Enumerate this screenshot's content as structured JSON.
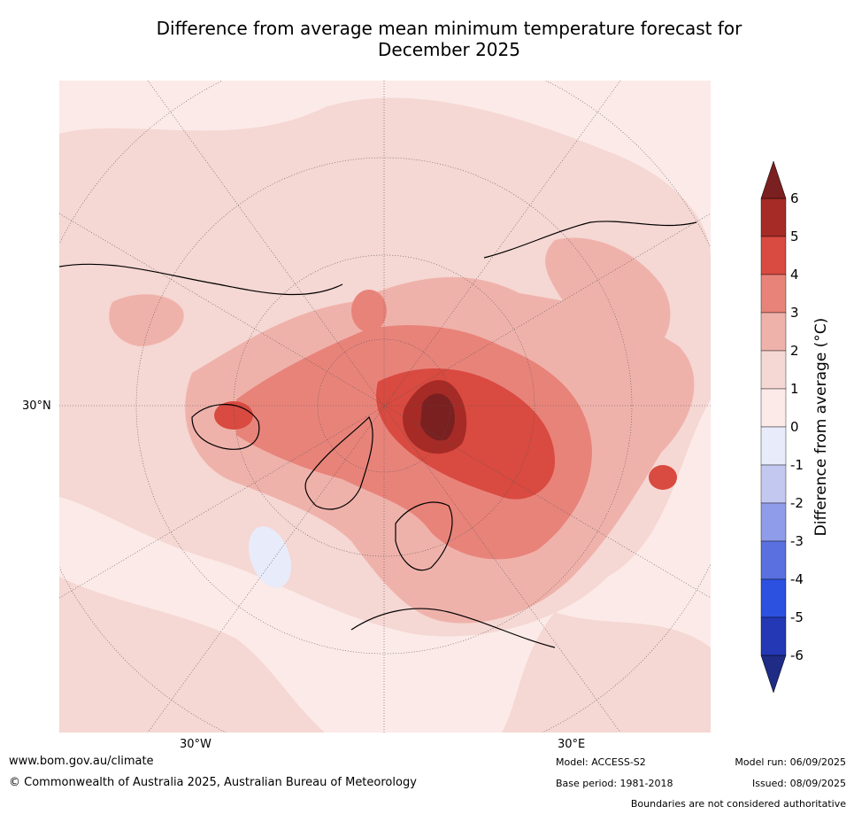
{
  "title_line1": "Difference from average mean minimum temperature forecast for",
  "title_line2": "December 2025",
  "map": {
    "projection": "north-polar-stereographic",
    "lat_labels": [
      "30°N"
    ],
    "lon_labels": [
      "30°W",
      "30°E"
    ],
    "graticule_visible": true,
    "background_anomaly_class": "0 to 1",
    "hotspots": [
      {
        "region": "Barents-Kara Sea",
        "anomaly_class": "above 5"
      },
      {
        "region": "Western Russia",
        "anomaly_class": "4 to 5"
      },
      {
        "region": "Hudson Bay",
        "anomaly_class": "4 to 5"
      },
      {
        "region": "Northern Greenland / Canadian Archipelago",
        "anomaly_class": "3 to 4"
      },
      {
        "region": "Kazakhstan",
        "anomaly_class": "4 to 5"
      },
      {
        "region": "North Atlantic",
        "anomaly_class": "-1 to 0"
      }
    ]
  },
  "colorbar": {
    "label": "Difference from average (°C)",
    "ticks": [
      "6",
      "5",
      "4",
      "3",
      "2",
      "1",
      "0",
      "-1",
      "-2",
      "-3",
      "-4",
      "-5",
      "-6"
    ],
    "colors_top_to_bottom": [
      "#a62b26",
      "#d94a40",
      "#e8837a",
      "#efb2ab",
      "#f5d7d3",
      "#fbeae8",
      "#e8ebf9",
      "#c2c8f0",
      "#8f9cea",
      "#5a70e0",
      "#2c50e0",
      "#2438b5"
    ],
    "over_color": "#7a2020",
    "under_color": "#1e2c85"
  },
  "footer": {
    "website": "www.bom.gov.au/climate",
    "copyright": "© Commonwealth of Australia 2025, Australian Bureau of Meteorology",
    "model": "Model: ACCESS-S2",
    "base_period": "Base period: 1981-2018",
    "model_run": "Model run: 06/09/2025",
    "issued": "Issued: 08/09/2025",
    "disclaimer": "Boundaries are not considered authoritative"
  }
}
